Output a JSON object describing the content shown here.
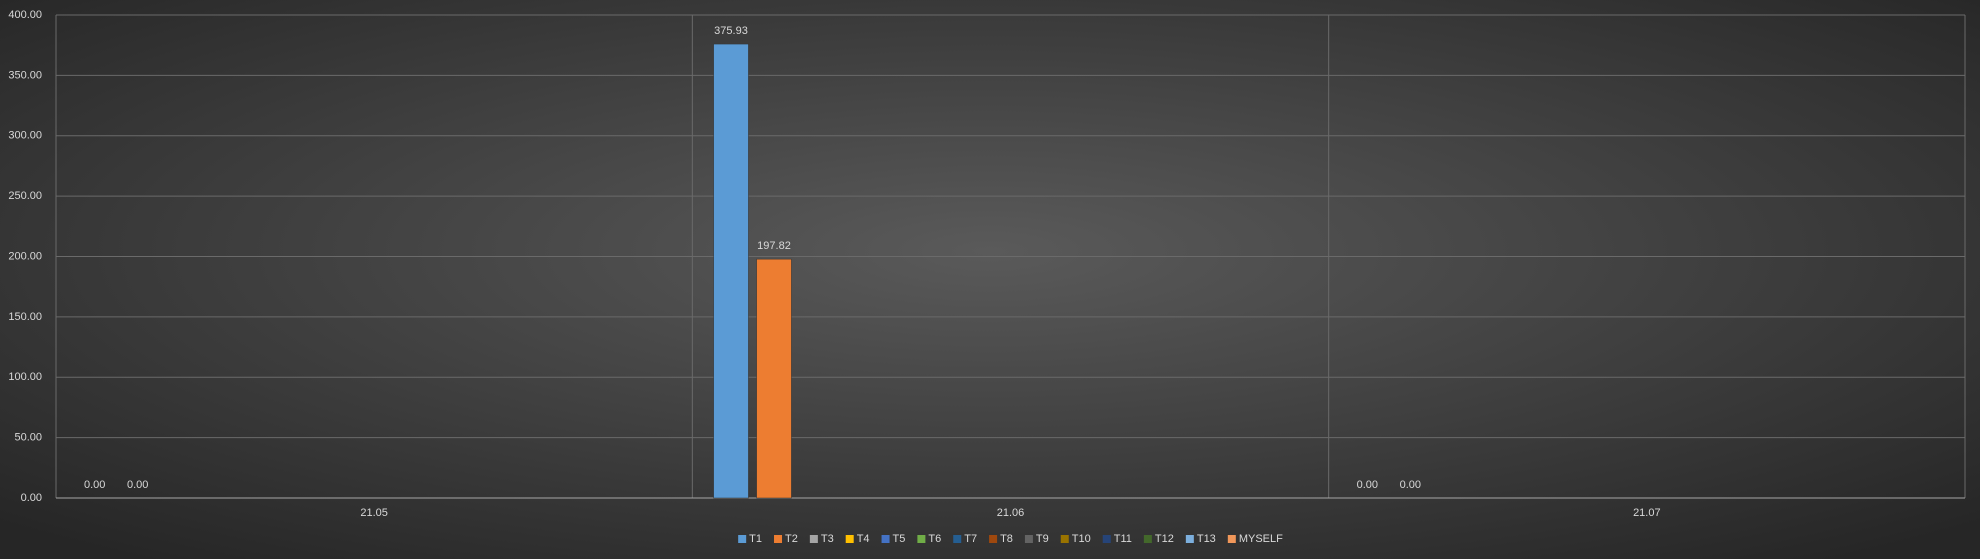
{
  "chart_data": {
    "type": "bar",
    "categories": [
      "21.05",
      "21.06",
      "21.07"
    ],
    "series": [
      {
        "name": "T1",
        "color": "#5b9bd5",
        "values": [
          0,
          375.93,
          0
        ],
        "value_labels": [
          "0.00",
          "375.93",
          "0.00"
        ]
      },
      {
        "name": "T2",
        "color": "#ed7d31",
        "values": [
          0,
          197.82,
          0
        ],
        "value_labels": [
          "0.00",
          "197.82",
          "0.00"
        ]
      },
      {
        "name": "T3",
        "color": "#a5a5a5",
        "values": [
          null,
          null,
          null
        ]
      },
      {
        "name": "T4",
        "color": "#ffc000",
        "values": [
          null,
          null,
          null
        ]
      },
      {
        "name": "T5",
        "color": "#4472c4",
        "values": [
          null,
          null,
          null
        ]
      },
      {
        "name": "T6",
        "color": "#70ad47",
        "values": [
          null,
          null,
          null
        ]
      },
      {
        "name": "T7",
        "color": "#255e91",
        "values": [
          null,
          null,
          null
        ]
      },
      {
        "name": "T8",
        "color": "#9e480e",
        "values": [
          null,
          null,
          null
        ]
      },
      {
        "name": "T9",
        "color": "#636363",
        "values": [
          null,
          null,
          null
        ]
      },
      {
        "name": "T10",
        "color": "#997300",
        "values": [
          null,
          null,
          null
        ]
      },
      {
        "name": "T11",
        "color": "#264478",
        "values": [
          null,
          null,
          null
        ]
      },
      {
        "name": "T12",
        "color": "#43682b",
        "values": [
          null,
          null,
          null
        ]
      },
      {
        "name": "T13",
        "color": "#7cafdd",
        "values": [
          null,
          null,
          null
        ]
      },
      {
        "name": "MYSELF",
        "color": "#f1975a",
        "values": [
          null,
          null,
          null
        ]
      }
    ],
    "ylim": [
      0,
      400
    ],
    "yticks": [
      {
        "value": 0,
        "label": "0.00"
      },
      {
        "value": 50,
        "label": "50.00"
      },
      {
        "value": 100,
        "label": "100.00"
      },
      {
        "value": 150,
        "label": "150.00"
      },
      {
        "value": 200,
        "label": "200.00"
      },
      {
        "value": 250,
        "label": "250.00"
      },
      {
        "value": 300,
        "label": "300.00"
      },
      {
        "value": 350,
        "label": "350.00"
      },
      {
        "value": 400,
        "label": "400.00"
      }
    ],
    "grid": true,
    "legend": "bottom"
  }
}
